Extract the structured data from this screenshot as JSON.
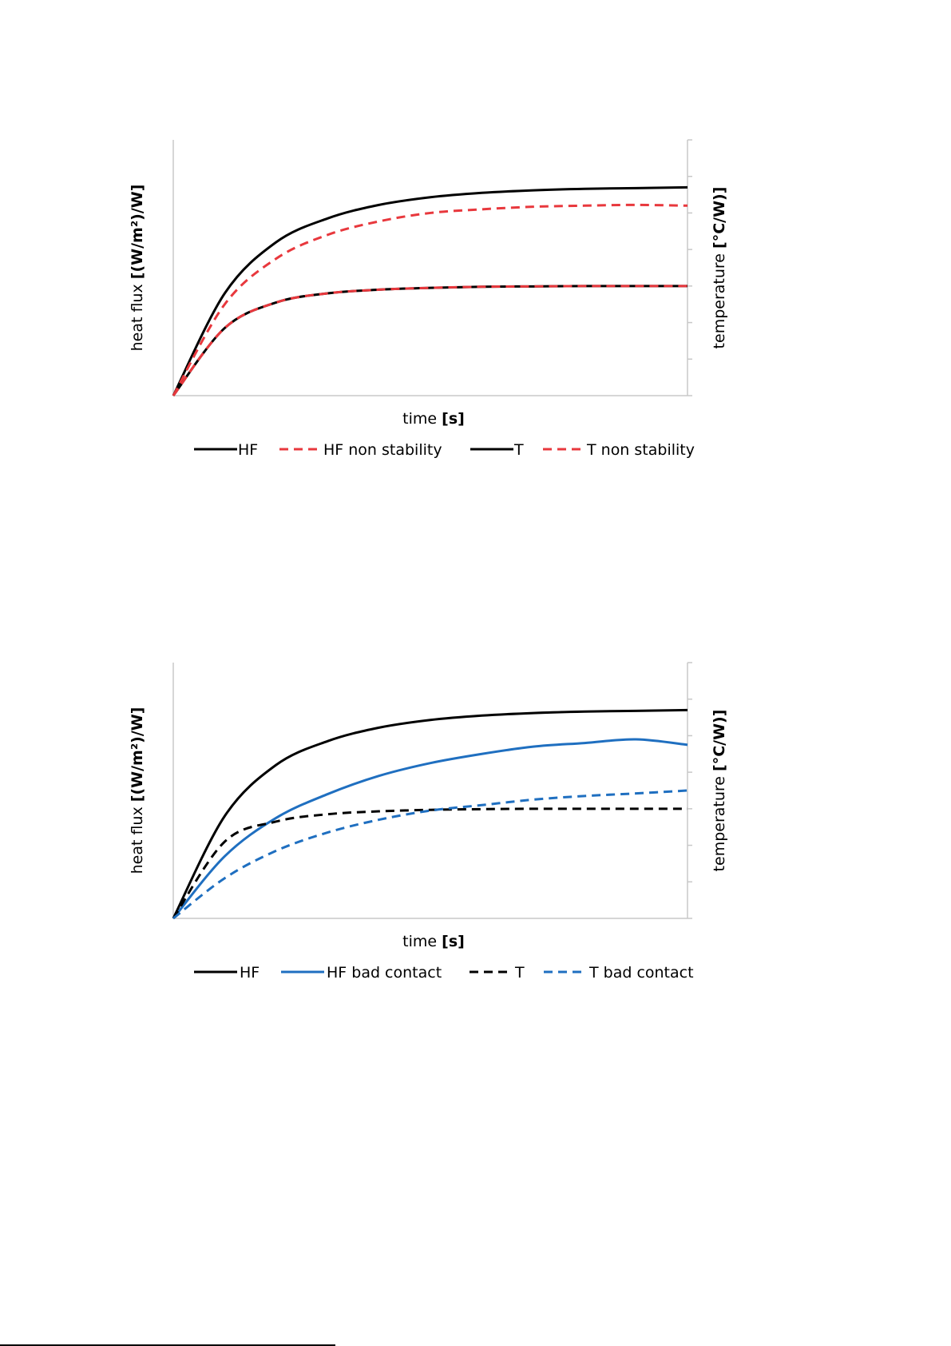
{
  "charts": [
    {
      "y_left_label_plain": "heat flux ",
      "y_left_label_bold": "[(W/m²)/W]",
      "y_right_label_plain": "temperature ",
      "y_right_label_bold": "[°C/W)]",
      "x_label_plain": "time ",
      "x_label_bold": "[s]",
      "legend": [
        "HF",
        "HF non stability",
        "T",
        "T non stability"
      ]
    },
    {
      "y_left_label_plain": "heat flux ",
      "y_left_label_bold": "[(W/m²)/W]",
      "y_right_label_plain": "temperature ",
      "y_right_label_bold": "[°C/W)]",
      "x_label_plain": "time ",
      "x_label_bold": "[s]",
      "legend": [
        "HF",
        "HF bad contact",
        "T",
        "T bad contact"
      ]
    }
  ],
  "chart_data": [
    {
      "type": "line",
      "title": "",
      "xlabel": "time [s]",
      "ylabel": "heat flux [(W/m²)/W]",
      "y2label": "temperature [°C/W)]",
      "x": [
        0,
        0.1,
        0.2,
        0.3,
        0.4,
        0.5,
        0.6,
        0.7,
        0.8,
        0.9,
        1.0
      ],
      "xlim": [
        0,
        1
      ],
      "ylim": [
        0,
        7
      ],
      "grid": false,
      "legend_position": "bottom",
      "series": [
        {
          "name": "HF",
          "color": "#000000",
          "dash": "solid",
          "values": [
            0,
            2.8,
            4.2,
            4.85,
            5.22,
            5.43,
            5.55,
            5.62,
            5.66,
            5.68,
            5.7
          ]
        },
        {
          "name": "HF non stability",
          "color": "#e8383d",
          "dash": "dashed",
          "values": [
            0,
            2.5,
            3.75,
            4.4,
            4.77,
            5.0,
            5.1,
            5.17,
            5.2,
            5.22,
            5.2
          ]
        },
        {
          "name": "T",
          "color": "#000000",
          "dash": "solid",
          "values": [
            0,
            1.85,
            2.55,
            2.8,
            2.9,
            2.95,
            2.98,
            2.99,
            3.0,
            3.0,
            3.0
          ]
        },
        {
          "name": "T non stability",
          "color": "#e8383d",
          "dash": "dashed",
          "values": [
            0,
            1.85,
            2.55,
            2.8,
            2.9,
            2.95,
            2.98,
            2.99,
            3.0,
            3.0,
            3.0
          ]
        }
      ]
    },
    {
      "type": "line",
      "title": "",
      "xlabel": "time [s]",
      "ylabel": "heat flux [(W/m²)/W]",
      "y2label": "temperature [°C/W)]",
      "x": [
        0,
        0.1,
        0.2,
        0.3,
        0.4,
        0.5,
        0.6,
        0.7,
        0.8,
        0.9,
        1.0
      ],
      "xlim": [
        0,
        1
      ],
      "ylim": [
        0,
        7
      ],
      "grid": false,
      "legend_position": "bottom",
      "series": [
        {
          "name": "HF",
          "color": "#000000",
          "dash": "solid",
          "values": [
            0,
            2.8,
            4.2,
            4.85,
            5.22,
            5.43,
            5.55,
            5.62,
            5.66,
            5.68,
            5.7
          ]
        },
        {
          "name": "HF bad contact",
          "color": "#1f6fc0",
          "dash": "solid",
          "values": [
            0,
            1.7,
            2.75,
            3.4,
            3.9,
            4.25,
            4.5,
            4.7,
            4.8,
            4.9,
            4.75
          ]
        },
        {
          "name": "T",
          "color": "#000000",
          "dash": "dashed",
          "values": [
            0,
            2.1,
            2.65,
            2.85,
            2.93,
            2.97,
            2.99,
            3.0,
            3.0,
            3.0,
            3.0
          ]
        },
        {
          "name": "T bad contact",
          "color": "#1f6fc0",
          "dash": "dashed",
          "values": [
            0,
            1.1,
            1.85,
            2.35,
            2.7,
            2.95,
            3.1,
            3.25,
            3.35,
            3.42,
            3.5
          ]
        }
      ]
    }
  ]
}
